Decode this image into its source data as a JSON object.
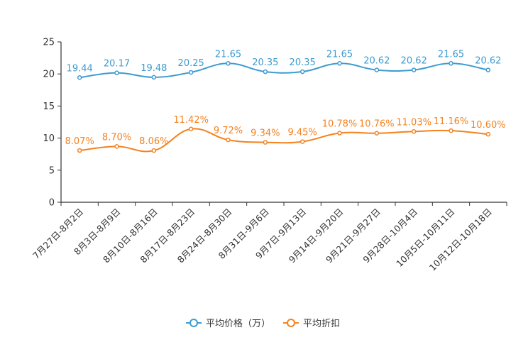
{
  "chart_data": {
    "type": "line",
    "categories": [
      "7月27日-8月2日",
      "8月3日-8月9日",
      "8月10日-8月16日",
      "8月17日-8月23日",
      "8月24日-8月30日",
      "8月31日-9月6日",
      "9月7日-9月13日",
      "9月14日-9月20日",
      "9月21日-9月27日",
      "9月28日-10月4日",
      "10月5日-10月11日",
      "10月12日-10月18日"
    ],
    "series": [
      {
        "name": "平均价格（万）",
        "color": "#3d9bd0",
        "values": [
          19.44,
          20.17,
          19.48,
          20.25,
          21.65,
          20.35,
          20.35,
          21.65,
          20.62,
          20.62,
          21.65,
          20.62
        ],
        "labels": [
          "19.44",
          "20.17",
          "19.48",
          "20.25",
          "21.65",
          "20.35",
          "20.35",
          "21.65",
          "20.62",
          "20.62",
          "21.65",
          "20.62"
        ]
      },
      {
        "name": "平均折扣",
        "color": "#f5821f",
        "values": [
          8.07,
          8.7,
          8.06,
          11.42,
          9.72,
          9.34,
          9.45,
          10.78,
          10.76,
          11.03,
          11.16,
          10.6
        ],
        "labels": [
          "8.07%",
          "8.70%",
          "8.06%",
          "11.42%",
          "9.72%",
          "9.34%",
          "9.45%",
          "10.78%",
          "10.76%",
          "11.03%",
          "11.16%",
          "10.60%"
        ]
      }
    ],
    "yticks": [
      "0",
      "5",
      "10",
      "15",
      "20",
      "25"
    ],
    "ylim": [
      0,
      25
    ],
    "title": "",
    "xlabel": "",
    "ylabel": "",
    "legend_position": "bottom-center",
    "grid": false
  }
}
